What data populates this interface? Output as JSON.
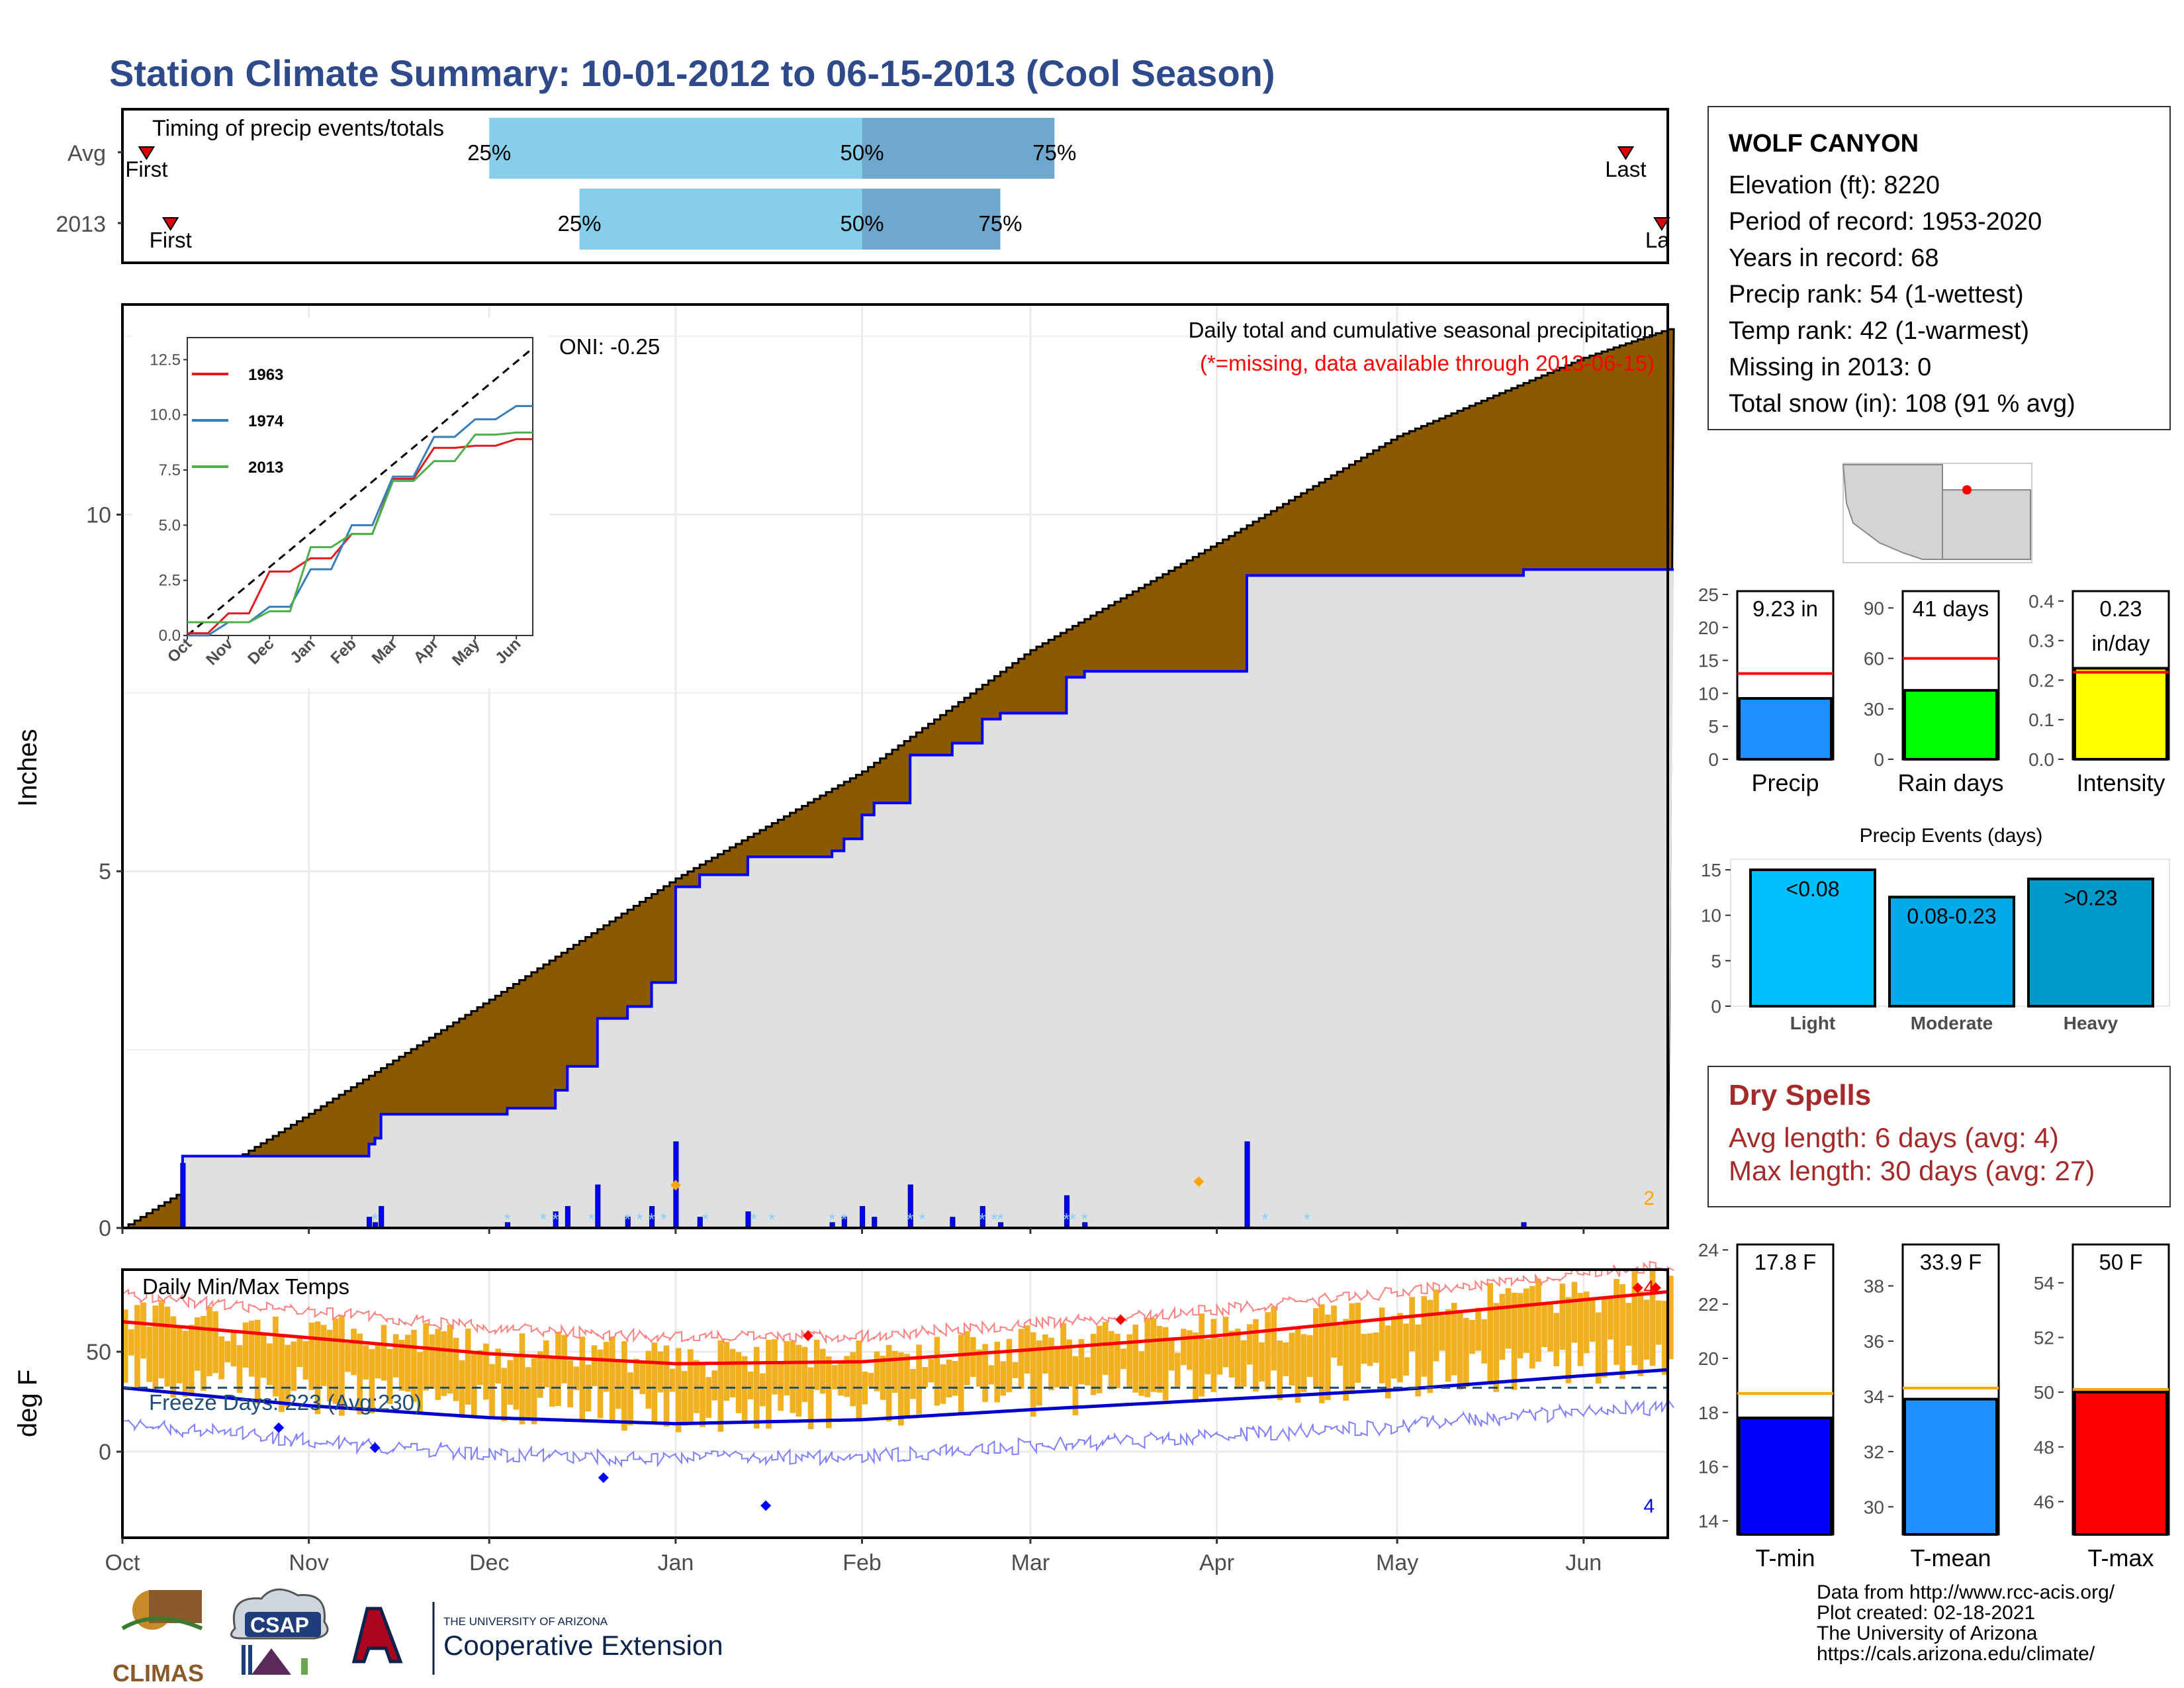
{
  "title": "Station Climate Summary: 10-01-2012 to 06-15-2013 (Cool Season)",
  "colors": {
    "title": "#2e4a8a",
    "cumulative_fill": "#8B5A00",
    "current_fill": "#e0e0e0",
    "current_line": "#0000ff",
    "temp_bars": "#f0b020",
    "tmax_avg": "#ff0000",
    "tmin_avg": "#0000cc",
    "light": "#00bfff",
    "moderate": "#00a9e8",
    "heavy": "#0099cc"
  },
  "station": {
    "name": "WOLF CANYON",
    "lines": [
      "Elevation (ft): 8220",
      "Period of record: 1953-2020",
      "Years in record: 68",
      "Precip rank: 54 (1-wettest)",
      "Temp rank: 42 (1-warmest)",
      "Missing in 2013: 0",
      "Total snow (in): 108 (91 % avg)"
    ]
  },
  "timing": {
    "title": "Timing of precip events/totals",
    "rows": [
      {
        "label": "Avg",
        "p25_label": "25%",
        "p50_label": "50%",
        "p75_label": "75%",
        "first_label": "First",
        "last_label": "Last",
        "p25": "Dec 1",
        "p50": "Feb 1",
        "p75": "Mar 5",
        "first": "Oct 5",
        "last": "Jun 8"
      },
      {
        "label": "2013",
        "p25_label": "25%",
        "p50_label": "50%",
        "p75_label": "75%",
        "first_label": "First",
        "last_label": "Last",
        "p25": "Dec 16",
        "p50": "Feb 1",
        "p75": "Feb 24",
        "first": "Oct 9",
        "last": "Jun 14"
      }
    ]
  },
  "precip_panel": {
    "ylabel": "Inches",
    "yticks": [
      "0",
      "5",
      "10"
    ],
    "label_main": "Daily total and cumulative seasonal precipitation",
    "label_missing": "(*=missing, data available through 2013-06-15)",
    "oni": "ONI: -0.25",
    "corner_count": "2"
  },
  "temp_panel": {
    "ylabel": "deg F",
    "yticks": [
      "0",
      "50"
    ],
    "title": "Daily Min/Max Temps",
    "freeze": "Freeze Days: 223 (Avg:230)",
    "count_top": "4",
    "count_bottom": "4"
  },
  "months": [
    "Oct",
    "Nov",
    "Dec",
    "Jan",
    "Feb",
    "Mar",
    "Apr",
    "May",
    "Jun"
  ],
  "inset": {
    "yticks": [
      "0.0",
      "2.5",
      "5.0",
      "7.5",
      "10.0",
      "12.5"
    ],
    "xticks": [
      "Oct",
      "Nov",
      "Dec",
      "Jan",
      "Feb",
      "Mar",
      "Apr",
      "May",
      "Jun"
    ],
    "legend": [
      "1963",
      "1974",
      "2013"
    ]
  },
  "mini_bars": {
    "precip": {
      "value_label": "9.23 in",
      "label": "Precip",
      "yticks": [
        "0",
        "5",
        "10",
        "15",
        "20",
        "25"
      ]
    },
    "rain": {
      "value_label": "41 days",
      "label": "Rain days",
      "yticks": [
        "0",
        "30",
        "60",
        "90"
      ]
    },
    "intensity": {
      "value_label_1": "0.23",
      "value_label_2": "in/day",
      "label": "Intensity",
      "yticks": [
        "0.0",
        "0.1",
        "0.2",
        "0.3",
        "0.4"
      ]
    }
  },
  "events": {
    "title": "Precip Events (days)",
    "yticks": [
      "0",
      "5",
      "10",
      "15"
    ],
    "bars": [
      {
        "name": "Light",
        "label": "<0.08"
      },
      {
        "name": "Moderate",
        "label": "0.08-0.23"
      },
      {
        "name": "Heavy",
        "label": ">0.23"
      }
    ]
  },
  "dry": {
    "title": "Dry Spells",
    "avg": "Avg length: 6 days (avg: 4)",
    "max": "Max length: 30 days (avg: 27)"
  },
  "temp_bars": {
    "tmin": {
      "value_label": "17.8 F",
      "label": "T-min",
      "yticks": [
        "14",
        "16",
        "18",
        "20",
        "22",
        "24"
      ]
    },
    "tmean": {
      "value_label": "33.9 F",
      "label": "T-mean",
      "yticks": [
        "30",
        "32",
        "34",
        "36",
        "38"
      ]
    },
    "tmax": {
      "value_label": "50 F",
      "label": "T-max",
      "yticks": [
        "46",
        "48",
        "50",
        "52",
        "54"
      ]
    }
  },
  "credits": [
    "Data from http://www.rcc-acis.org/",
    "Plot created: 02-18-2021",
    "The University of Arizona",
    "https://cals.arizona.edu/climate/"
  ],
  "logos": {
    "climas": "CLIMAS",
    "csap": "CSAP",
    "ua_small": "THE UNIVERSITY OF ARIZONA",
    "ua_big": "Cooperative Extension"
  },
  "chart_data": [
    {
      "type": "area",
      "title": "Daily total and cumulative seasonal precipitation",
      "ylabel": "Inches",
      "ylim": [
        0,
        12.5
      ],
      "x": [
        "2012-10-01",
        "2012-11-01",
        "2012-12-01",
        "2013-01-01",
        "2013-02-01",
        "2013-03-01",
        "2013-04-01",
        "2013-05-01",
        "2013-06-01",
        "2013-06-15"
      ],
      "series": [
        {
          "name": "average cumulative",
          "values": [
            0.0,
            1.6,
            3.2,
            4.9,
            6.4,
            8.1,
            9.6,
            11.1,
            12.2,
            12.6
          ]
        },
        {
          "name": "2013 cumulative",
          "values": [
            0.6,
            0.6,
            1.1,
            4.0,
            4.6,
            7.0,
            7.9,
            9.1,
            9.2,
            9.23
          ]
        }
      ]
    },
    {
      "type": "line",
      "title": "Daily Min/Max Temps",
      "ylabel": "deg F",
      "x": [
        "2012-10-01",
        "2012-11-01",
        "2012-12-01",
        "2013-01-01",
        "2013-02-01",
        "2013-03-01",
        "2013-04-01",
        "2013-05-01",
        "2013-06-01",
        "2013-06-15"
      ],
      "series": [
        {
          "name": "avg max",
          "values": [
            65,
            57,
            49,
            44,
            45,
            51,
            58,
            67,
            76,
            80
          ]
        },
        {
          "name": "avg min",
          "values": [
            32,
            23,
            17,
            14,
            16,
            21,
            26,
            31,
            38,
            41
          ]
        },
        {
          "name": "freeze",
          "values": [
            32,
            32,
            32,
            32,
            32,
            32,
            32,
            32,
            32,
            32
          ]
        }
      ]
    },
    {
      "type": "line",
      "x": [
        "Oct",
        "Nov",
        "Dec",
        "Jan",
        "Feb",
        "Mar",
        "Apr",
        "May",
        "Jun"
      ],
      "series": [
        {
          "name": "1963",
          "values": [
            0.1,
            1.0,
            2.9,
            3.5,
            4.6,
            7.1,
            8.5,
            8.6,
            8.9
          ]
        },
        {
          "name": "1974",
          "values": [
            0.0,
            0.6,
            1.3,
            3.0,
            5.0,
            7.2,
            9.0,
            9.8,
            10.4
          ]
        },
        {
          "name": "2013",
          "values": [
            0.6,
            0.6,
            1.1,
            4.0,
            4.6,
            7.0,
            7.9,
            9.1,
            9.2
          ]
        }
      ]
    },
    {
      "type": "bar",
      "categories": [
        "Precip"
      ],
      "values": [
        9.23
      ],
      "avg": 13,
      "ylim": [
        0,
        25
      ]
    },
    {
      "type": "bar",
      "categories": [
        "Rain days"
      ],
      "values": [
        41
      ],
      "avg": 60,
      "ylim": [
        0,
        100
      ]
    },
    {
      "type": "bar",
      "categories": [
        "Intensity"
      ],
      "values": [
        0.23
      ],
      "avg": 0.22,
      "ylim": [
        0,
        0.4
      ]
    },
    {
      "type": "bar",
      "title": "Precip Events (days)",
      "categories": [
        "Light",
        "Moderate",
        "Heavy"
      ],
      "values": [
        15,
        12,
        14
      ],
      "ylim": [
        0,
        15
      ]
    },
    {
      "type": "bar",
      "categories": [
        "T-min"
      ],
      "values": [
        17.8
      ],
      "avg": 18.7,
      "ylim": [
        13.5,
        24
      ]
    },
    {
      "type": "bar",
      "categories": [
        "T-mean"
      ],
      "values": [
        33.9
      ],
      "avg": 34.3,
      "ylim": [
        29,
        39
      ]
    },
    {
      "type": "bar",
      "categories": [
        "T-max"
      ],
      "values": [
        50
      ],
      "avg": 50.1,
      "ylim": [
        45,
        55
      ]
    }
  ]
}
